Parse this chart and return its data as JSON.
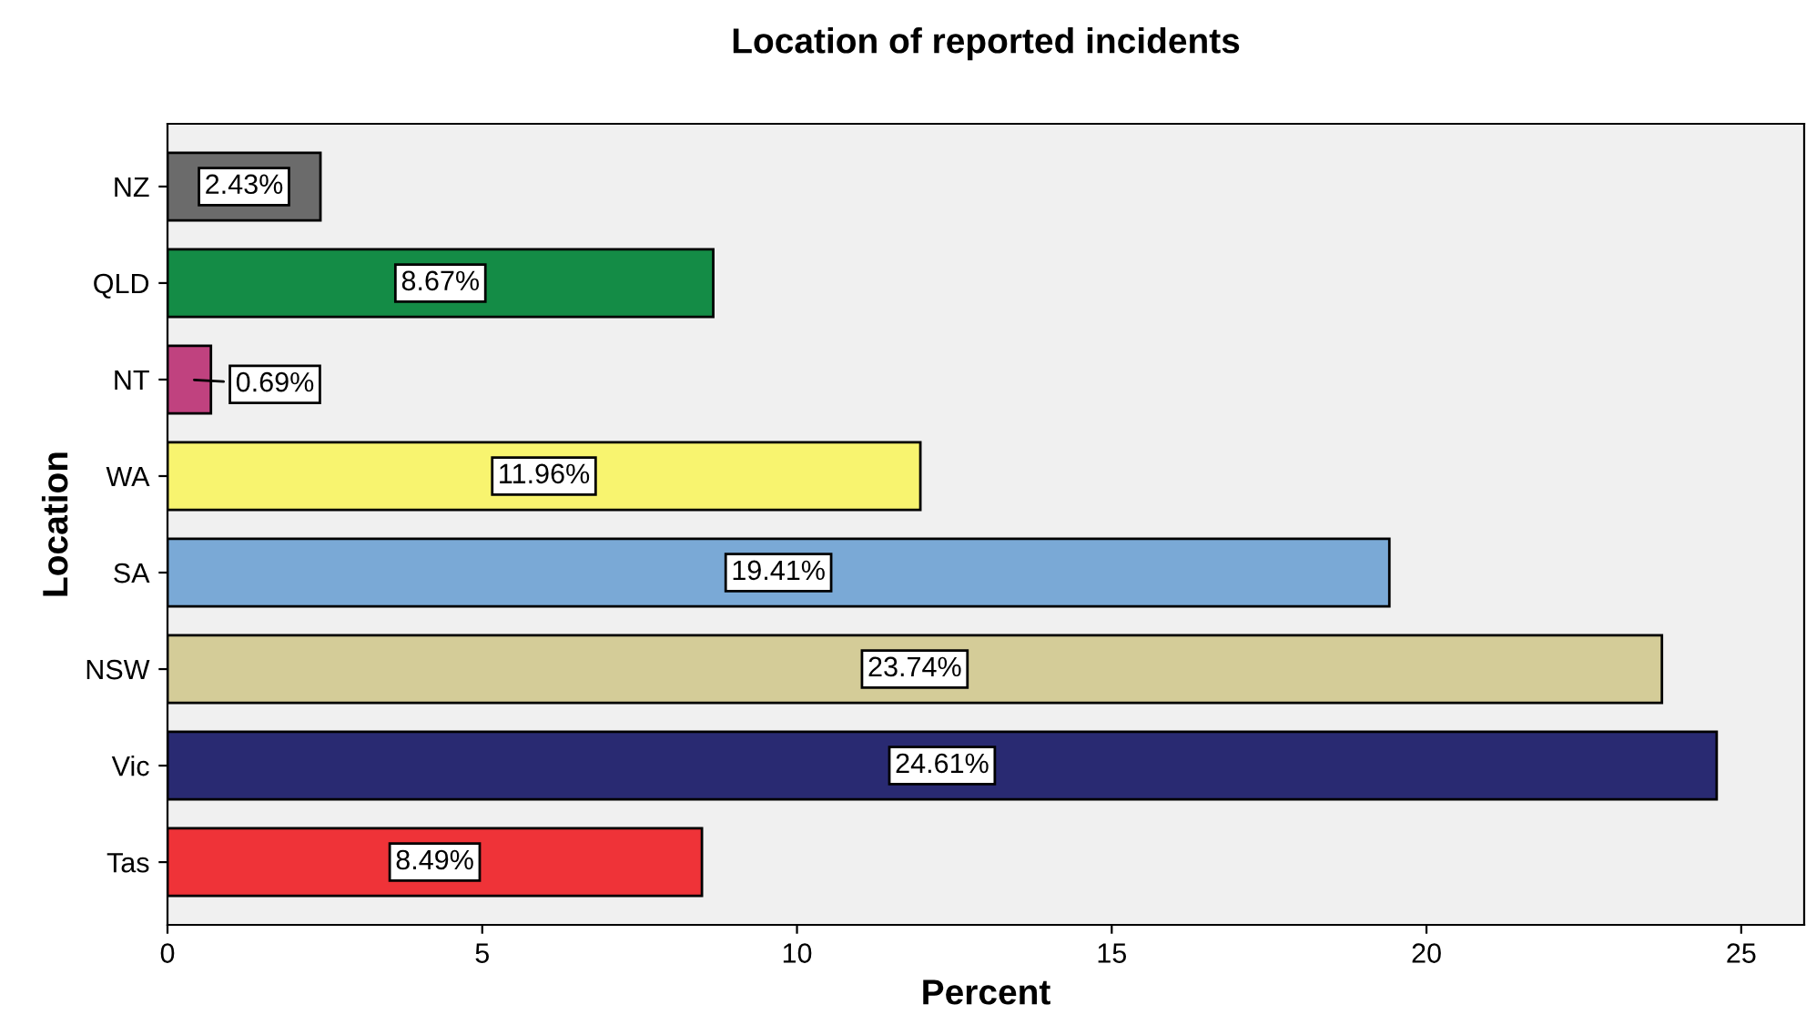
{
  "chart_data": {
    "type": "bar",
    "orientation": "horizontal",
    "title": "Location of reported incidents",
    "xlabel": "Percent",
    "ylabel": "Location",
    "categories": [
      "NZ",
      "QLD",
      "NT",
      "WA",
      "SA",
      "NSW",
      "Vic",
      "Tas"
    ],
    "values": [
      2.43,
      8.67,
      0.69,
      11.96,
      19.41,
      23.74,
      24.61,
      8.49
    ],
    "colors": [
      "#6b6b6b",
      "#148c46",
      "#c0427f",
      "#f8f46f",
      "#7aa9d6",
      "#d4cc98",
      "#292a72",
      "#ef3338"
    ],
    "value_labels": [
      "2.43%",
      "8.67%",
      "0.69%",
      "11.96%",
      "19.41%",
      "23.74%",
      "24.61%",
      "8.49%"
    ],
    "xlim": [
      0,
      26
    ],
    "xticks": [
      0,
      5,
      10,
      15,
      20,
      25
    ],
    "grid": false,
    "legend": false
  }
}
